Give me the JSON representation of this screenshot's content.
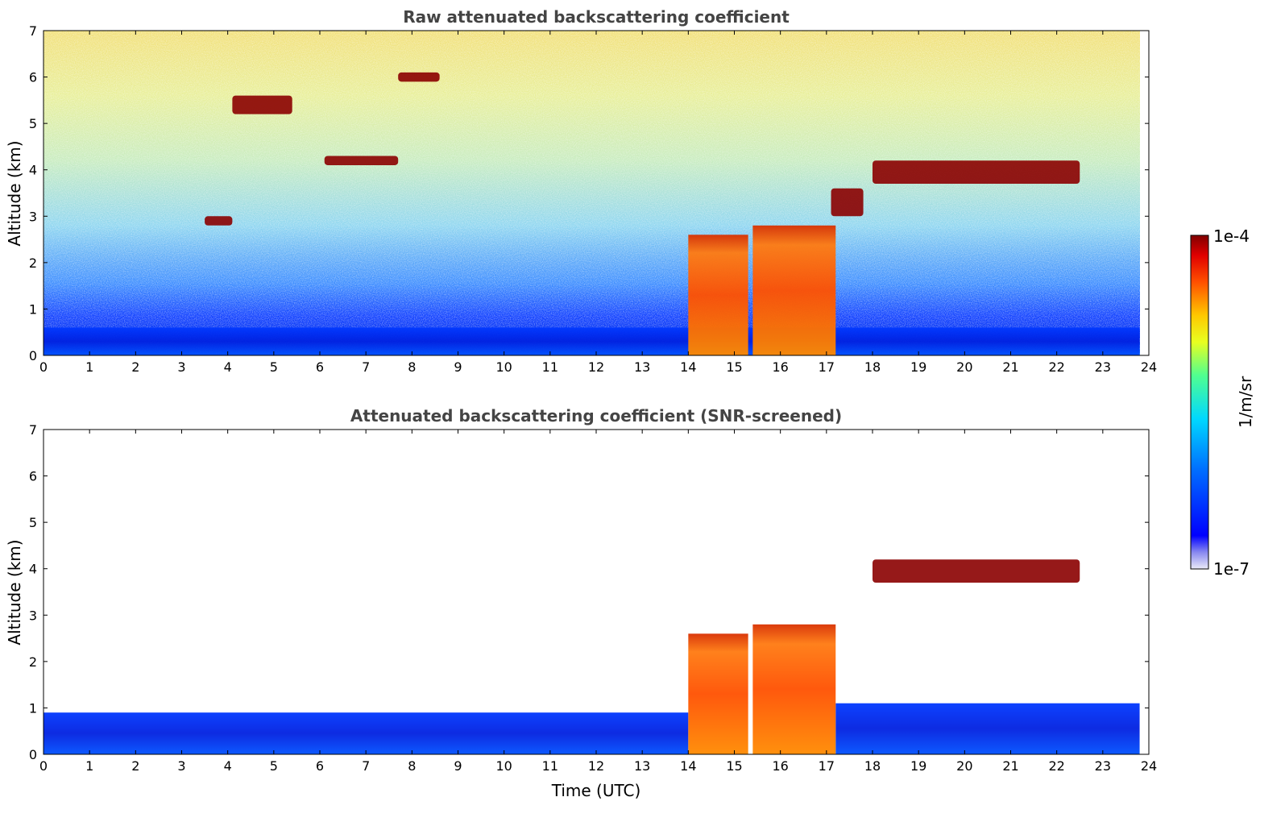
{
  "chart_data": [
    {
      "type": "heatmap",
      "title": "Raw attenuated backscattering coefficient",
      "xlabel": "",
      "ylabel": "Altitude (km)",
      "xlim": [
        0,
        24
      ],
      "ylim": [
        0,
        7
      ],
      "xticks": [
        "0",
        "1",
        "2",
        "3",
        "4",
        "5",
        "6",
        "7",
        "8",
        "9",
        "10",
        "11",
        "12",
        "13",
        "14",
        "15",
        "16",
        "17",
        "18",
        "19",
        "20",
        "21",
        "22",
        "23",
        "24"
      ],
      "yticks": [
        "0",
        "1",
        "2",
        "3",
        "4",
        "5",
        "6",
        "7"
      ],
      "features": [
        {
          "kind": "boundary-layer",
          "x": [
            0,
            23.8
          ],
          "y": [
            0,
            0.6
          ]
        },
        {
          "kind": "low-cloud",
          "x": [
            14.0,
            15.3
          ],
          "y": [
            0,
            2.6
          ]
        },
        {
          "kind": "low-cloud",
          "x": [
            15.4,
            17.2
          ],
          "y": [
            0,
            2.8
          ]
        },
        {
          "kind": "cloud-layer",
          "x": [
            18.0,
            22.5
          ],
          "y": [
            3.7,
            4.2
          ]
        },
        {
          "kind": "cloud-layer",
          "x": [
            4.1,
            5.4
          ],
          "y": [
            5.2,
            5.6
          ]
        },
        {
          "kind": "cloud-layer",
          "x": [
            7.7,
            8.6
          ],
          "y": [
            5.9,
            6.1
          ]
        },
        {
          "kind": "cloud-layer",
          "x": [
            6.1,
            7.7
          ],
          "y": [
            4.1,
            4.3
          ]
        },
        {
          "kind": "cloud-layer",
          "x": [
            3.5,
            4.1
          ],
          "y": [
            2.8,
            3.0
          ]
        },
        {
          "kind": "cloud-layer",
          "x": [
            17.1,
            17.8
          ],
          "y": [
            3.0,
            3.6
          ]
        }
      ]
    },
    {
      "type": "heatmap",
      "title": "Attenuated backscattering coefficient (SNR-screened)",
      "xlabel": "Time (UTC)",
      "ylabel": "Altitude (km)",
      "xlim": [
        0,
        24
      ],
      "ylim": [
        0,
        7
      ],
      "xticks": [
        "0",
        "1",
        "2",
        "3",
        "4",
        "5",
        "6",
        "7",
        "8",
        "9",
        "10",
        "11",
        "12",
        "13",
        "14",
        "15",
        "16",
        "17",
        "18",
        "19",
        "20",
        "21",
        "22",
        "23",
        "24"
      ],
      "yticks": [
        "0",
        "1",
        "2",
        "3",
        "4",
        "5",
        "6",
        "7"
      ],
      "features": [
        {
          "kind": "boundary-layer",
          "x": [
            0,
            14.0
          ],
          "y": [
            0,
            0.9
          ]
        },
        {
          "kind": "boundary-layer",
          "x": [
            17.2,
            23.8
          ],
          "y": [
            0,
            1.1
          ]
        },
        {
          "kind": "low-cloud",
          "x": [
            14.0,
            15.3
          ],
          "y": [
            0,
            2.6
          ]
        },
        {
          "kind": "low-cloud",
          "x": [
            15.4,
            17.2
          ],
          "y": [
            0,
            2.8
          ]
        },
        {
          "kind": "cloud-layer",
          "x": [
            18.0,
            22.5
          ],
          "y": [
            3.7,
            4.2
          ]
        }
      ]
    }
  ],
  "colorbar": {
    "min_label": "1e-7",
    "max_label": "1e-4",
    "unit_label": "1/m/sr",
    "scale": "log",
    "colors": [
      "#e8e8f8",
      "#3030ff",
      "#0000ff",
      "#0080ff",
      "#00e0ff",
      "#40ff80",
      "#e0ff20",
      "#ffd000",
      "#ff6000",
      "#e00000",
      "#800000"
    ]
  }
}
